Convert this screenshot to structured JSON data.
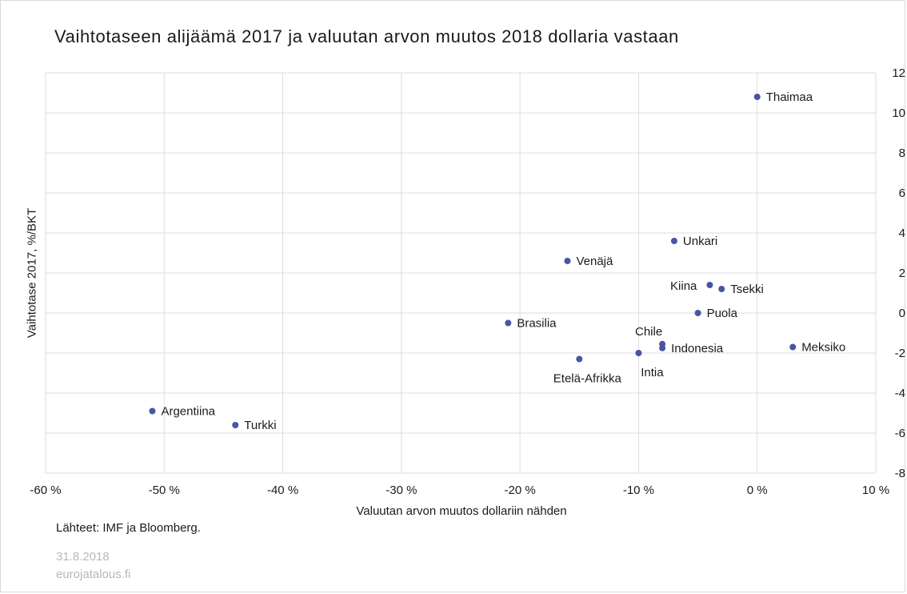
{
  "title": "Vaihtotaseen alijäämä 2017 ja valuutan arvon muutos 2018 dollaria vastaan",
  "source": "Lähteet: IMF ja Bloomberg.",
  "date": "31.8.2018",
  "site": "eurojatalous.fi",
  "colors": {
    "point": "#4a54a4",
    "grid": "#dcdcdc",
    "text": "#1a1a1a",
    "muted": "#b8b8b8"
  },
  "chart_data": {
    "type": "scatter",
    "title": "Vaihtotaseen alijäämä 2017 ja valuutan arvon muutos 2018 dollaria vastaan",
    "xlabel": "Valuutan arvon muutos dollariin nähden",
    "ylabel": "Vaihtotase 2017, %/BKT",
    "xlim": [
      -60,
      10
    ],
    "ylim": [
      -8,
      12
    ],
    "xticks": [
      -60,
      -50,
      -40,
      -30,
      -20,
      -10,
      0,
      10
    ],
    "xtick_labels": [
      "-60 %",
      "-50 %",
      "-40 %",
      "-30 %",
      "-20 %",
      "-10 %",
      "0 %",
      "10 %"
    ],
    "yticks": [
      -8,
      -6,
      -4,
      -2,
      0,
      2,
      4,
      6,
      8,
      10,
      12
    ],
    "ytick_labels": [
      "-8",
      "-6",
      "-4",
      "-2",
      "0",
      "2",
      "4",
      "6",
      "8",
      "10",
      "12"
    ],
    "y_axis_side": "right",
    "grid": true,
    "points": [
      {
        "label": "Thaimaa",
        "x": 0,
        "y": 10.8,
        "label_pos": "right"
      },
      {
        "label": "Unkari",
        "x": -7,
        "y": 3.6,
        "label_pos": "right"
      },
      {
        "label": "Venäjä",
        "x": -16,
        "y": 2.6,
        "label_pos": "right"
      },
      {
        "label": "Kiina",
        "x": -4,
        "y": 1.4,
        "label_pos": "left"
      },
      {
        "label": "Tsekki",
        "x": -3,
        "y": 1.2,
        "label_pos": "right"
      },
      {
        "label": "Puola",
        "x": -5,
        "y": 0.0,
        "label_pos": "right"
      },
      {
        "label": "Brasilia",
        "x": -21,
        "y": -0.5,
        "label_pos": "right"
      },
      {
        "label": "Chile",
        "x": -8,
        "y": -1.55,
        "label_pos": "above"
      },
      {
        "label": "Indonesia",
        "x": -8,
        "y": -1.75,
        "label_pos": "right"
      },
      {
        "label": "Meksiko",
        "x": 3,
        "y": -1.7,
        "label_pos": "right"
      },
      {
        "label": "Intia",
        "x": -10,
        "y": -2.0,
        "label_pos": "below"
      },
      {
        "label": "Etelä-Afrikka",
        "x": -15,
        "y": -2.3,
        "label_pos": "below"
      },
      {
        "label": "Argentiina",
        "x": -51,
        "y": -4.9,
        "label_pos": "right"
      },
      {
        "label": "Turkki",
        "x": -44,
        "y": -5.6,
        "label_pos": "right"
      }
    ]
  }
}
